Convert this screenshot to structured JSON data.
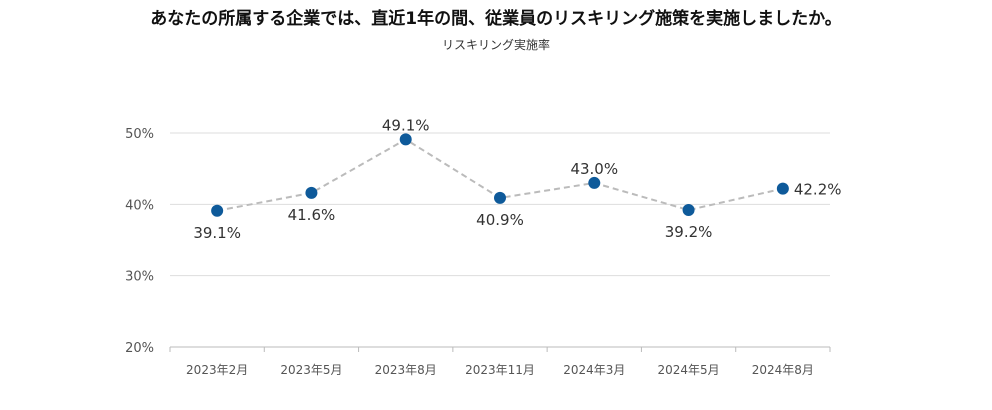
{
  "chart_data": {
    "type": "line",
    "title": "あなたの所属する企業では、直近1年の間、従業員のリスキリング施策を実施しましたか。",
    "subtitle": "リスキリング実施率",
    "categories": [
      "2023年2月",
      "2023年5月",
      "2023年8月",
      "2023年11月",
      "2024年3月",
      "2024年5月",
      "2024年8月"
    ],
    "series": [
      {
        "name": "リスキリング実施率",
        "values": [
          39.1,
          41.6,
          49.1,
          40.9,
          43.0,
          39.2,
          42.2
        ]
      }
    ],
    "data_labels": [
      "39.1%",
      "41.6%",
      "49.1%",
      "40.9%",
      "43.0%",
      "39.2%",
      "42.2%"
    ],
    "label_positions": [
      "below",
      "below",
      "above",
      "below",
      "above",
      "below",
      "right"
    ],
    "yticks": [
      20,
      30,
      40,
      50
    ],
    "ytick_labels": [
      "20%",
      "30%",
      "40%",
      "50%"
    ],
    "ylim": [
      20,
      50
    ],
    "grid": true,
    "colors": {
      "marker": "#0e5a9a",
      "line": "#bbbbbb",
      "grid": "#dddddd",
      "axis": "#bbbbbb"
    }
  }
}
